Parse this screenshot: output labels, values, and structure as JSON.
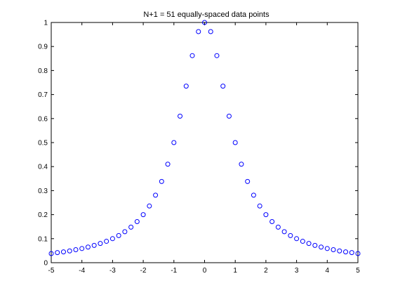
{
  "chart_data": {
    "type": "scatter",
    "title": "N+1 = 51 equally-spaced data points",
    "xlabel": "",
    "ylabel": "",
    "xlim": [
      -5,
      5
    ],
    "ylim": [
      0,
      1
    ],
    "xticks": [
      -5,
      -4,
      -3,
      -2,
      -1,
      0,
      1,
      2,
      3,
      4,
      5
    ],
    "yticks": [
      0,
      0.1,
      0.2,
      0.3,
      0.4,
      0.5,
      0.6,
      0.7,
      0.8,
      0.9,
      1
    ],
    "xtick_labels": [
      "-5",
      "-4",
      "-3",
      "-2",
      "-1",
      "0",
      "1",
      "2",
      "3",
      "4",
      "5"
    ],
    "ytick_labels": [
      "0",
      "0.1",
      "0.2",
      "0.3",
      "0.4",
      "0.5",
      "0.6",
      "0.7",
      "0.8",
      "0.9",
      "1"
    ],
    "grid": false,
    "marker": "circle-open",
    "marker_color": "#0000ff",
    "x": [
      -5,
      -4.8,
      -4.6,
      -4.4,
      -4.2,
      -4,
      -3.8,
      -3.6,
      -3.4,
      -3.2,
      -3,
      -2.8,
      -2.6,
      -2.4,
      -2.2,
      -2,
      -1.8,
      -1.6,
      -1.4,
      -1.2,
      -1,
      -0.8,
      -0.6,
      -0.4,
      -0.2,
      0,
      0.2,
      0.4,
      0.6,
      0.8,
      1,
      1.2,
      1.4,
      1.6,
      1.8,
      2,
      2.2,
      2.4,
      2.6,
      2.8,
      3,
      3.2,
      3.4,
      3.6,
      3.8,
      4,
      4.2,
      4.4,
      4.6,
      4.8,
      5
    ],
    "y": [
      0.038,
      0.042,
      0.045,
      0.049,
      0.054,
      0.059,
      0.065,
      0.072,
      0.08,
      0.089,
      0.1,
      0.113,
      0.129,
      0.148,
      0.171,
      0.2,
      0.236,
      0.281,
      0.338,
      0.41,
      0.5,
      0.61,
      0.735,
      0.862,
      0.962,
      1.0,
      0.962,
      0.862,
      0.735,
      0.61,
      0.5,
      0.41,
      0.338,
      0.281,
      0.236,
      0.2,
      0.171,
      0.148,
      0.129,
      0.113,
      0.1,
      0.089,
      0.08,
      0.072,
      0.065,
      0.059,
      0.054,
      0.049,
      0.045,
      0.042,
      0.038
    ]
  }
}
